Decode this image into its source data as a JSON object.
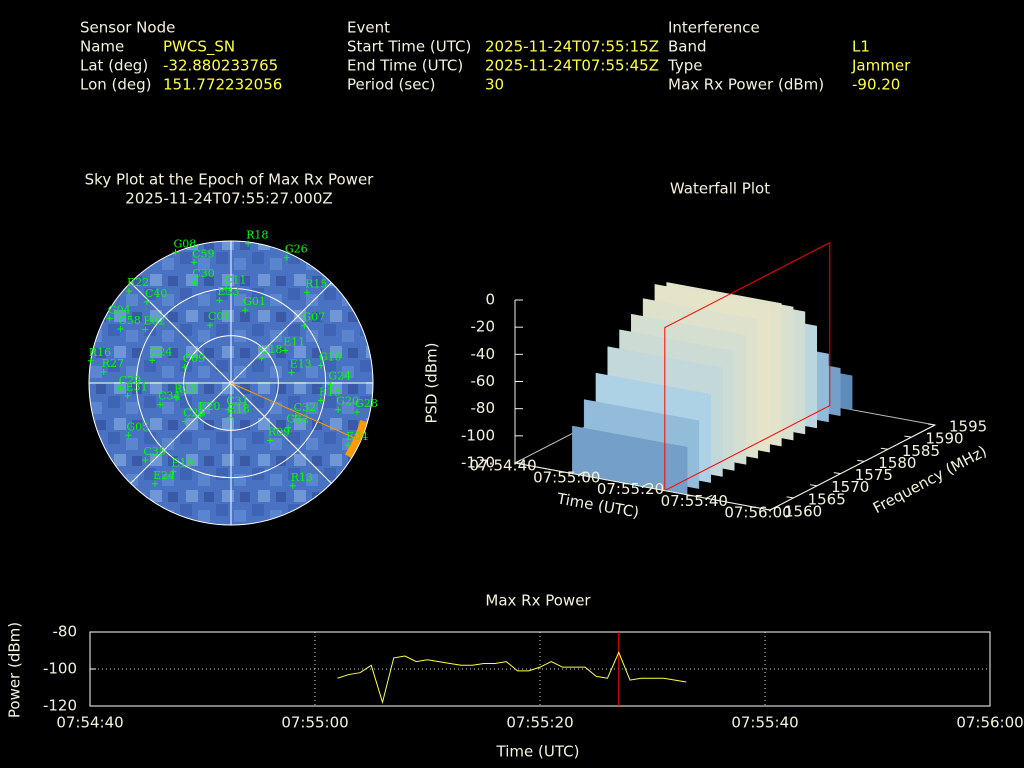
{
  "header": {
    "sections": [
      {
        "title": "Sensor Node",
        "fields": [
          {
            "label": "Name",
            "value": "PWCS_SN"
          },
          {
            "label": "Lat (deg)",
            "value": "-32.880233765"
          },
          {
            "label": "Lon (deg)",
            "value": "151.772232056"
          }
        ]
      },
      {
        "title": "Event",
        "fields": [
          {
            "label": "Start Time (UTC)",
            "value": "2025-11-24T07:55:15Z"
          },
          {
            "label": "End Time (UTC)",
            "value": "2025-11-24T07:55:45Z"
          },
          {
            "label": "Period (sec)",
            "value": "30"
          }
        ]
      },
      {
        "title": "Interference",
        "fields": [
          {
            "label": "Band",
            "value": "L1"
          },
          {
            "label": "Type",
            "value": "Jammer"
          },
          {
            "label": "Max Rx Power (dBm)",
            "value": "-90.20"
          }
        ]
      }
    ]
  },
  "chart_data": [
    {
      "type": "polar",
      "title": "Sky Plot at the Epoch of Max Rx Power",
      "subtitle": "2025-11-24T07:55:27.000Z",
      "rlim": [
        90,
        0
      ],
      "rticks": [
        0,
        30,
        60
      ],
      "azticks": [
        0,
        45,
        90,
        135,
        180,
        225,
        270,
        315
      ],
      "color": "#00ff00",
      "jammer_azimuth": 114,
      "jammer_color": "#ff9900",
      "satellites": [
        {
          "name": "R18",
          "azimuth": 7,
          "elevation": 1
        },
        {
          "name": "G26",
          "azimuth": 24,
          "elevation": 3
        },
        {
          "name": "R15",
          "azimuth": 40,
          "elevation": 15
        },
        {
          "name": "G07",
          "azimuth": 52,
          "elevation": 31
        },
        {
          "name": "E11",
          "azimuth": 59,
          "elevation": 50
        },
        {
          "name": "G18",
          "azimuth": 51,
          "elevation": 65
        },
        {
          "name": "E13",
          "azimuth": 80,
          "elevation": 51
        },
        {
          "name": "G10",
          "azimuth": 79,
          "elevation": 32
        },
        {
          "name": "G24",
          "azimuth": 91,
          "elevation": 27
        },
        {
          "name": "E15",
          "azimuth": 101,
          "elevation": 32
        },
        {
          "name": "G20",
          "azimuth": 104,
          "elevation": 20
        },
        {
          "name": "G28",
          "azimuth": 103,
          "elevation": 8
        },
        {
          "name": "E04",
          "azimuth": 118,
          "elevation": 6
        },
        {
          "name": "C32",
          "azimuth": 117,
          "elevation": 44
        },
        {
          "name": "G32",
          "azimuth": 128,
          "elevation": 44
        },
        {
          "name": "R09",
          "azimuth": 146,
          "elevation": 46
        },
        {
          "name": "R13",
          "azimuth": 149,
          "elevation": 14
        },
        {
          "name": "C31",
          "azimuth": 186,
          "elevation": 73
        },
        {
          "name": "E18",
          "azimuth": 182,
          "elevation": 68
        },
        {
          "name": "G05",
          "azimuth": 243,
          "elevation": 17
        },
        {
          "name": "C35",
          "azimuth": 228,
          "elevation": 17
        },
        {
          "name": "E19",
          "azimuth": 213,
          "elevation": 23
        },
        {
          "name": "E24",
          "azimuth": 217,
          "elevation": 10
        },
        {
          "name": "R27",
          "azimuth": 275,
          "elevation": 9
        },
        {
          "name": "E31",
          "azimuth": 263,
          "elevation": 24
        },
        {
          "name": "C29",
          "azimuth": 267,
          "elevation": 20
        },
        {
          "name": "C24",
          "azimuth": 286,
          "elevation": 38
        },
        {
          "name": "C09",
          "azimuth": 289,
          "elevation": 59
        },
        {
          "name": "R23",
          "azimuth": 255,
          "elevation": 54
        },
        {
          "name": "C34",
          "azimuth": 253,
          "elevation": 43
        },
        {
          "name": "C26",
          "azimuth": 230,
          "elevation": 52
        },
        {
          "name": "E20",
          "azimuth": 224,
          "elevation": 62
        },
        {
          "name": "R16",
          "azimuth": 279,
          "elevation": 0
        },
        {
          "name": "G04",
          "azimuth": 298,
          "elevation": 3
        },
        {
          "name": "C58",
          "azimuth": 296,
          "elevation": 12
        },
        {
          "name": "E02",
          "azimuth": 302,
          "elevation": 26
        },
        {
          "name": "R22",
          "azimuth": 312,
          "elevation": 3
        },
        {
          "name": "C40",
          "azimuth": 314,
          "elevation": 16
        },
        {
          "name": "C59",
          "azimuth": 343,
          "elevation": 10
        },
        {
          "name": "C30",
          "azimuth": 340,
          "elevation": 22
        },
        {
          "name": "E33",
          "azimuth": 352,
          "elevation": 37
        },
        {
          "name": "C11",
          "azimuth": 357,
          "elevation": 30
        },
        {
          "name": "G01",
          "azimuth": 11,
          "elevation": 43
        },
        {
          "name": "C01",
          "azimuth": 340,
          "elevation": 51
        },
        {
          "name": "G08",
          "azimuth": 337,
          "elevation": 0
        }
      ]
    },
    {
      "type": "surface3d",
      "title": "Waterfall Plot",
      "xlabel": "Time (UTC)",
      "ylabel": "Frequency (MHz)",
      "zlabel": "PSD (dBm)",
      "xlim": [
        "07:54:40",
        "07:56:00"
      ],
      "xticks": [
        "07:54:40",
        "07:55:00",
        "07:55:20",
        "07:55:40",
        "07:56:00"
      ],
      "ylim": [
        1560,
        1595
      ],
      "yticks": [
        1560,
        1565,
        1570,
        1575,
        1580,
        1585,
        1590,
        1595
      ],
      "zlim": [
        -120,
        0
      ],
      "zticks": [
        0,
        -20,
        -40,
        -60,
        -80,
        -100,
        -120
      ],
      "surface_xlim": [
        "07:54:58",
        "07:55:34"
      ],
      "spectrum": {
        "frequencies": [
          1560,
          1562.5,
          1565,
          1567.5,
          1570,
          1572.5,
          1575,
          1577.5,
          1580,
          1582.5,
          1585,
          1587.5,
          1590,
          1592.5,
          1595
        ],
        "values": [
          -85,
          -70,
          -55,
          -40,
          -32,
          -25,
          -18,
          -12,
          -15,
          -22,
          -30,
          -45,
          -70,
          -85,
          -95
        ]
      },
      "plane_time": "07:55:27",
      "plane_color": "#ff0000"
    },
    {
      "type": "line",
      "title": "Max Rx Power",
      "xlabel": "Time (UTC)",
      "ylabel": "Power (dBm)",
      "xlim": [
        "07:54:40",
        "07:56:00"
      ],
      "xticks": [
        "07:54:40",
        "07:55:00",
        "07:55:20",
        "07:55:40",
        "07:56:00"
      ],
      "ylim": [
        -120,
        -80
      ],
      "yticks": [
        -80,
        -100,
        -120
      ],
      "grid": true,
      "color": "#ffff40",
      "vline": "07:55:27",
      "vline_color": "#ff0000",
      "x": [
        "07:55:02",
        "07:55:03",
        "07:55:04",
        "07:55:05",
        "07:55:06",
        "07:55:07",
        "07:55:08",
        "07:55:09",
        "07:55:10",
        "07:55:11",
        "07:55:12",
        "07:55:13",
        "07:55:14",
        "07:55:15",
        "07:55:16",
        "07:55:17",
        "07:55:18",
        "07:55:19",
        "07:55:20",
        "07:55:21",
        "07:55:22",
        "07:55:23",
        "07:55:24",
        "07:55:25",
        "07:55:26",
        "07:55:27",
        "07:55:28",
        "07:55:29",
        "07:55:30",
        "07:55:31",
        "07:55:32",
        "07:55:33"
      ],
      "values": [
        -105,
        -103,
        -102,
        -98,
        -118,
        -94,
        -93,
        -96,
        -95,
        -96,
        -97,
        -98,
        -98,
        -97,
        -97,
        -96,
        -101,
        -101,
        -99,
        -96,
        -99,
        -99,
        -99,
        -104,
        -105,
        -91,
        -106,
        -105,
        -105,
        -105,
        -106,
        -107
      ]
    }
  ]
}
